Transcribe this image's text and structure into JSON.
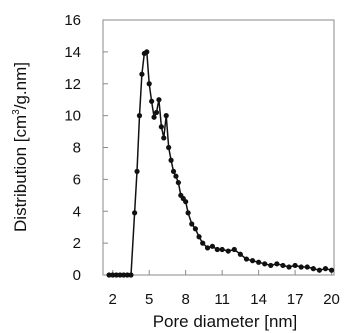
{
  "chart_data": {
    "type": "line",
    "title": "",
    "xlabel": "Pore diameter [nm]",
    "ylabel_main": "Distribution [cm",
    "ylabel_sup": "3",
    "ylabel_tail": "/g.nm]",
    "xlim": [
      1.2,
      20.2
    ],
    "ylim": [
      0,
      16
    ],
    "xticks": [
      2,
      5,
      8,
      11,
      14,
      17,
      20
    ],
    "yticks": [
      0,
      2,
      4,
      6,
      8,
      10,
      12,
      14,
      16
    ],
    "grid": false,
    "legend": "none",
    "series": [
      {
        "color": "#111111",
        "marker_color": "#111111",
        "x": [
          1.7,
          2.0,
          2.3,
          2.6,
          2.9,
          3.2,
          3.5,
          3.8,
          4.0,
          4.2,
          4.4,
          4.6,
          4.8,
          5.0,
          5.2,
          5.4,
          5.6,
          5.8,
          6.0,
          6.2,
          6.4,
          6.6,
          6.8,
          7.0,
          7.2,
          7.4,
          7.6,
          7.8,
          8.0,
          8.2,
          8.5,
          8.8,
          9.1,
          9.4,
          9.8,
          10.2,
          10.6,
          11.0,
          11.5,
          12.0,
          12.5,
          13.0,
          13.5,
          14.0,
          14.5,
          15.0,
          15.5,
          16.0,
          16.5,
          17.0,
          17.5,
          18.0,
          18.5,
          19.0,
          19.5,
          20.0
        ],
        "y": [
          0,
          0,
          0,
          0,
          0,
          0,
          0,
          3.9,
          6.5,
          10.0,
          12.6,
          13.9,
          14.0,
          12.0,
          10.9,
          9.9,
          10.2,
          11.0,
          9.3,
          8.6,
          10.0,
          8.0,
          7.2,
          6.5,
          6.2,
          5.8,
          5.0,
          4.8,
          4.6,
          3.9,
          3.2,
          2.9,
          2.4,
          2.0,
          1.7,
          1.8,
          1.6,
          1.6,
          1.5,
          1.6,
          1.3,
          1.0,
          0.9,
          0.8,
          0.7,
          0.6,
          0.7,
          0.6,
          0.5,
          0.6,
          0.5,
          0.5,
          0.4,
          0.3,
          0.4,
          0.3
        ]
      }
    ]
  }
}
